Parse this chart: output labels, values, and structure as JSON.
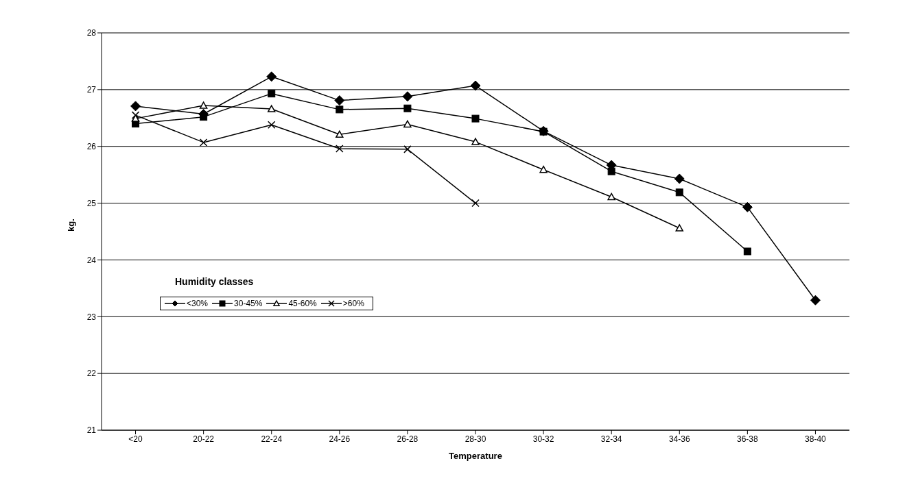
{
  "chart_data": {
    "type": "line",
    "xlabel": "Temperature",
    "ylabel": "kg.",
    "legend_title": "Humidity classes",
    "categories": [
      "<20",
      "20-22",
      "22-24",
      "24-26",
      "26-28",
      "28-30",
      "30-32",
      "32-34",
      "34-36",
      "36-38",
      "38-40"
    ],
    "series": [
      {
        "name": "<30%",
        "color": "#000000",
        "marker": "diamond",
        "values": [
          26.71,
          26.57,
          27.23,
          26.81,
          26.88,
          27.07,
          26.27,
          25.67,
          25.43,
          24.93,
          23.29
        ]
      },
      {
        "name": "30-45%",
        "color": "#000000",
        "marker": "square",
        "values": [
          26.4,
          26.52,
          26.93,
          26.65,
          26.67,
          26.49,
          26.26,
          25.56,
          25.19,
          24.15,
          null
        ]
      },
      {
        "name": "45-60%",
        "color": "#000000",
        "marker": "triangle",
        "values": [
          26.49,
          26.72,
          26.66,
          26.21,
          26.39,
          26.08,
          25.59,
          25.11,
          24.56,
          null,
          null
        ]
      },
      {
        "name": ">60%",
        "color": "#000000",
        "marker": "cross",
        "values": [
          26.55,
          26.07,
          26.38,
          25.96,
          25.95,
          25.0,
          null,
          null,
          null,
          null,
          null
        ]
      }
    ],
    "ylim": [
      21,
      28
    ],
    "yticks": [
      21,
      22,
      23,
      24,
      25,
      26,
      27,
      28
    ],
    "grid": "y",
    "legend": "left"
  }
}
